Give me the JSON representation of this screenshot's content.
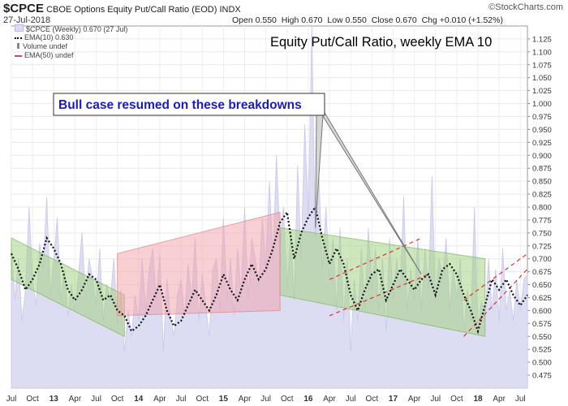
{
  "header": {
    "symbol": "$CPCE",
    "description": "CBOE Options Equity Put/Call Ratio (EOD)",
    "exchange": "INDX",
    "date": "27-Jul-2018",
    "open": "Open 0.550",
    "high": "High 0.670",
    "low": "Low 0.550",
    "close": "Close 0.670",
    "chg": "Chg +0.010 (+1.52%)",
    "brand": "©StockCharts.com"
  },
  "legend": {
    "series": "$CPCE (Weekly) 0.670 (27 Jul)",
    "ema10": "EMA(10) 0.630",
    "volume": "Volume undef",
    "ema50": "EMA(50) undef"
  },
  "colors": {
    "price_fill": "#dcdcf2",
    "price_line": "#c8c8ee",
    "ema10": "#111111",
    "green_channel": "#9fd07a",
    "red_channel": "#f2a0a8",
    "dashed_red": "#e03030",
    "callout_text": "#1a1acc"
  },
  "chart_data": {
    "type": "area",
    "title": "Equity Put/Call Ratio, weekly EMA 10",
    "annotations": [
      "Bull case resumed on these  breakdowns"
    ],
    "ylim": [
      0.45,
      1.15
    ],
    "y_ticks": [
      "1.125",
      "1.100",
      "1.075",
      "1.050",
      "1.025",
      "1.000",
      "0.975",
      "0.950",
      "0.925",
      "0.900",
      "0.875",
      "0.850",
      "0.825",
      "0.800",
      "0.775",
      "0.750",
      "0.725",
      "0.700",
      "0.675",
      "0.650",
      "0.625",
      "0.600",
      "0.575",
      "0.550",
      "0.525",
      "0.500",
      "0.475"
    ],
    "x_labels": [
      "Jul",
      "Oct",
      "13",
      "Apr",
      "Jul",
      "Oct",
      "14",
      "Apr",
      "Jul",
      "Oct",
      "15",
      "Apr",
      "Jul",
      "Oct",
      "16",
      "Apr",
      "Jul",
      "Oct",
      "17",
      "Apr",
      "Jul",
      "Oct",
      "18",
      "Apr",
      "Jul"
    ],
    "x_positions": [
      0,
      3,
      6,
      9,
      12,
      15,
      18,
      21,
      24,
      27,
      30,
      33,
      36,
      39,
      42,
      45,
      48,
      51,
      54,
      57,
      60,
      63,
      66,
      69,
      72
    ],
    "months_span": [
      0,
      73
    ],
    "ema10": [
      [
        0,
        0.71
      ],
      [
        1,
        0.68
      ],
      [
        2,
        0.64
      ],
      [
        3,
        0.66
      ],
      [
        4,
        0.69
      ],
      [
        5,
        0.74
      ],
      [
        6,
        0.72
      ],
      [
        7,
        0.69
      ],
      [
        8,
        0.64
      ],
      [
        9,
        0.62
      ],
      [
        10,
        0.64
      ],
      [
        11,
        0.67
      ],
      [
        12,
        0.66
      ],
      [
        13,
        0.62
      ],
      [
        14,
        0.63
      ],
      [
        15,
        0.6
      ],
      [
        16,
        0.59
      ],
      [
        17,
        0.56
      ],
      [
        18,
        0.57
      ],
      [
        19,
        0.59
      ],
      [
        20,
        0.62
      ],
      [
        21,
        0.65
      ],
      [
        22,
        0.6
      ],
      [
        23,
        0.57
      ],
      [
        24,
        0.58
      ],
      [
        25,
        0.61
      ],
      [
        26,
        0.64
      ],
      [
        27,
        0.62
      ],
      [
        28,
        0.6
      ],
      [
        29,
        0.63
      ],
      [
        30,
        0.67
      ],
      [
        31,
        0.64
      ],
      [
        32,
        0.62
      ],
      [
        33,
        0.66
      ],
      [
        34,
        0.69
      ],
      [
        35,
        0.66
      ],
      [
        36,
        0.68
      ],
      [
        37,
        0.72
      ],
      [
        38,
        0.77
      ],
      [
        39,
        0.79
      ],
      [
        40,
        0.7
      ],
      [
        41,
        0.75
      ],
      [
        42,
        0.78
      ],
      [
        43,
        0.8
      ],
      [
        44,
        0.74
      ],
      [
        45,
        0.69
      ],
      [
        46,
        0.72
      ],
      [
        47,
        0.69
      ],
      [
        48,
        0.63
      ],
      [
        49,
        0.6
      ],
      [
        50,
        0.64
      ],
      [
        51,
        0.67
      ],
      [
        52,
        0.68
      ],
      [
        53,
        0.62
      ],
      [
        54,
        0.65
      ],
      [
        55,
        0.68
      ],
      [
        56,
        0.66
      ],
      [
        57,
        0.64
      ],
      [
        58,
        0.66
      ],
      [
        59,
        0.67
      ],
      [
        60,
        0.63
      ],
      [
        61,
        0.68
      ],
      [
        62,
        0.69
      ],
      [
        63,
        0.67
      ],
      [
        64,
        0.63
      ],
      [
        65,
        0.6
      ],
      [
        66,
        0.56
      ],
      [
        67,
        0.61
      ],
      [
        68,
        0.66
      ],
      [
        69,
        0.64
      ],
      [
        70,
        0.66
      ],
      [
        71,
        0.63
      ],
      [
        72,
        0.61
      ],
      [
        73,
        0.63
      ]
    ],
    "price": [
      [
        0,
        0.72
      ],
      [
        0.5,
        0.62
      ],
      [
        1,
        0.7
      ],
      [
        1.5,
        0.58
      ],
      [
        2,
        0.64
      ],
      [
        2.5,
        0.8
      ],
      [
        3,
        0.66
      ],
      [
        3.5,
        0.61
      ],
      [
        4,
        0.73
      ],
      [
        4.5,
        0.68
      ],
      [
        5,
        0.82
      ],
      [
        5.5,
        0.63
      ],
      [
        6,
        0.7
      ],
      [
        6.5,
        0.78
      ],
      [
        7,
        0.62
      ],
      [
        7.5,
        0.68
      ],
      [
        8,
        0.59
      ],
      [
        8.5,
        0.65
      ],
      [
        9,
        0.6
      ],
      [
        9.5,
        0.67
      ],
      [
        10,
        0.75
      ],
      [
        10.5,
        0.62
      ],
      [
        11,
        0.7
      ],
      [
        11.5,
        0.66
      ],
      [
        12,
        0.61
      ],
      [
        12.5,
        0.72
      ],
      [
        13,
        0.58
      ],
      [
        13.5,
        0.65
      ],
      [
        14,
        0.62
      ],
      [
        14.5,
        0.7
      ],
      [
        15,
        0.57
      ],
      [
        15.5,
        0.64
      ],
      [
        16,
        0.52
      ],
      [
        16.5,
        0.6
      ],
      [
        17,
        0.55
      ],
      [
        17.5,
        0.63
      ],
      [
        18,
        0.58
      ],
      [
        18.5,
        0.7
      ],
      [
        19,
        0.6
      ],
      [
        19.5,
        0.68
      ],
      [
        20,
        0.72
      ],
      [
        20.5,
        0.62
      ],
      [
        21,
        0.71
      ],
      [
        21.5,
        0.52
      ],
      [
        22,
        0.66
      ],
      [
        22.5,
        0.59
      ],
      [
        23,
        0.55
      ],
      [
        23.5,
        0.63
      ],
      [
        24,
        0.66
      ],
      [
        24.5,
        0.59
      ],
      [
        25,
        0.69
      ],
      [
        25.5,
        0.62
      ],
      [
        26,
        0.74
      ],
      [
        26.5,
        0.58
      ],
      [
        27,
        0.67
      ],
      [
        27.5,
        0.61
      ],
      [
        28,
        0.55
      ],
      [
        28.5,
        0.68
      ],
      [
        29,
        0.7
      ],
      [
        29.5,
        0.6
      ],
      [
        30,
        0.78
      ],
      [
        30.5,
        0.62
      ],
      [
        31,
        0.7
      ],
      [
        31.5,
        0.59
      ],
      [
        32,
        0.72
      ],
      [
        32.5,
        0.63
      ],
      [
        33,
        0.8
      ],
      [
        33.5,
        0.62
      ],
      [
        34,
        0.74
      ],
      [
        34.5,
        0.7
      ],
      [
        35,
        0.65
      ],
      [
        35.5,
        0.78
      ],
      [
        36,
        0.68
      ],
      [
        36.5,
        0.85
      ],
      [
        37,
        0.7
      ],
      [
        37.5,
        0.9
      ],
      [
        38,
        0.73
      ],
      [
        38.5,
        0.8
      ],
      [
        39,
        0.64
      ],
      [
        39.5,
        0.75
      ],
      [
        40,
        0.62
      ],
      [
        40.5,
        0.88
      ],
      [
        41,
        0.7
      ],
      [
        41.5,
        0.96
      ],
      [
        42,
        0.78
      ],
      [
        42.5,
        1.15
      ],
      [
        43,
        0.74
      ],
      [
        43.5,
        0.86
      ],
      [
        44,
        0.68
      ],
      [
        44.5,
        0.8
      ],
      [
        45,
        0.66
      ],
      [
        45.5,
        0.74
      ],
      [
        46,
        0.6
      ],
      [
        46.5,
        0.76
      ],
      [
        47,
        0.58
      ],
      [
        47.5,
        0.7
      ],
      [
        48,
        0.52
      ],
      [
        48.5,
        0.66
      ],
      [
        49,
        0.58
      ],
      [
        49.5,
        0.72
      ],
      [
        50,
        0.6
      ],
      [
        50.5,
        0.76
      ],
      [
        51,
        0.64
      ],
      [
        51.5,
        0.72
      ],
      [
        52,
        0.6
      ],
      [
        52.5,
        0.7
      ],
      [
        53,
        0.56
      ],
      [
        53.5,
        0.74
      ],
      [
        54,
        0.62
      ],
      [
        54.5,
        0.7
      ],
      [
        55,
        0.64
      ],
      [
        55.5,
        0.82
      ],
      [
        56,
        0.6
      ],
      [
        56.5,
        0.68
      ],
      [
        57,
        0.62
      ],
      [
        57.5,
        0.74
      ],
      [
        58,
        0.6
      ],
      [
        58.5,
        0.72
      ],
      [
        59,
        0.64
      ],
      [
        59.5,
        0.86
      ],
      [
        60,
        0.62
      ],
      [
        60.5,
        0.7
      ],
      [
        61,
        0.66
      ],
      [
        61.5,
        0.74
      ],
      [
        62,
        0.6
      ],
      [
        62.5,
        0.68
      ],
      [
        63,
        0.62
      ],
      [
        63.5,
        0.7
      ],
      [
        64,
        0.56
      ],
      [
        64.5,
        0.64
      ],
      [
        65,
        0.58
      ],
      [
        65.5,
        0.8
      ],
      [
        66,
        0.56
      ],
      [
        66.5,
        0.62
      ],
      [
        67,
        0.58
      ],
      [
        67.5,
        0.7
      ],
      [
        68,
        0.6
      ],
      [
        68.5,
        0.68
      ],
      [
        69,
        0.58
      ],
      [
        69.5,
        0.72
      ],
      [
        70,
        0.6
      ],
      [
        70.5,
        0.64
      ],
      [
        71,
        0.58
      ],
      [
        71.5,
        0.66
      ],
      [
        72,
        0.6
      ],
      [
        72.5,
        0.66
      ],
      [
        73,
        0.67
      ]
    ],
    "green_channels": [
      [
        [
          0,
          0.66
        ],
        [
          16,
          0.55
        ],
        [
          16,
          0.63
        ],
        [
          0,
          0.74
        ]
      ],
      [
        [
          38,
          0.63
        ],
        [
          67,
          0.55
        ],
        [
          67,
          0.7
        ],
        [
          38,
          0.76
        ]
      ]
    ],
    "red_channel": [
      [
        15,
        0.59
      ],
      [
        38,
        0.6
      ],
      [
        38,
        0.79
      ],
      [
        15,
        0.71
      ]
    ],
    "dashed_lines": [
      [
        [
          45,
          0.66
        ],
        [
          58,
          0.74
        ]
      ],
      [
        [
          45,
          0.59
        ],
        [
          59,
          0.67
        ]
      ],
      [
        [
          64,
          0.55
        ],
        [
          73,
          0.68
        ]
      ],
      [
        [
          64,
          0.62
        ],
        [
          73,
          0.71
        ]
      ]
    ],
    "callout_target_points": [
      [
        43,
        0.76
      ],
      [
        58,
        0.67
      ]
    ]
  }
}
